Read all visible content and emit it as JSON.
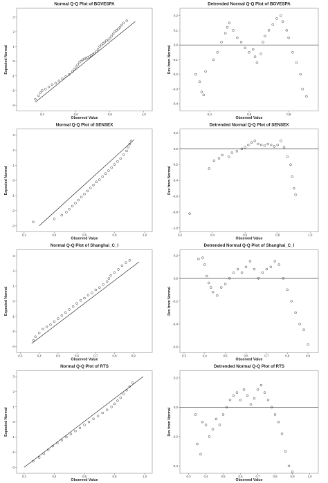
{
  "figure": {
    "panel_count": 8
  },
  "chart_data": [
    {
      "type": "scatter",
      "title": "Normal Q-Q Plot of BOVESPA",
      "xlabel": "Observed Value",
      "ylabel": "Expected Normal",
      "xlim": [
        0.25,
        1.05
      ],
      "ylim": [
        -3.4,
        3.6
      ],
      "xticks": [
        0.4,
        0.6,
        0.8,
        1.0
      ],
      "xtick_labels": [
        "0,4",
        "0,6",
        "0,8",
        "1,0"
      ],
      "yticks": [
        -3,
        -2,
        -1,
        0,
        1,
        2,
        3
      ],
      "yticks_labels": [
        "-3",
        "-2",
        "-1",
        "0",
        "1",
        "2",
        "3"
      ],
      "reference_line": {
        "x": [
          0.36,
          0.95
        ],
        "y": [
          -2.8,
          2.7
        ]
      },
      "points": [
        [
          0.36,
          -2.6
        ],
        [
          0.38,
          -2.35
        ],
        [
          0.39,
          -2.15
        ],
        [
          0.4,
          -2.0
        ],
        [
          0.42,
          -1.9
        ],
        [
          0.44,
          -1.75
        ],
        [
          0.46,
          -1.6
        ],
        [
          0.48,
          -1.5
        ],
        [
          0.5,
          -1.35
        ],
        [
          0.52,
          -1.2
        ],
        [
          0.54,
          -1.05
        ],
        [
          0.56,
          -0.9
        ],
        [
          0.58,
          -0.7
        ],
        [
          0.59,
          -0.55
        ],
        [
          0.6,
          -0.4
        ],
        [
          0.61,
          -0.25
        ],
        [
          0.62,
          -0.1
        ],
        [
          0.63,
          0.0
        ],
        [
          0.64,
          0.1
        ],
        [
          0.65,
          0.15
        ],
        [
          0.66,
          0.2
        ],
        [
          0.67,
          0.25
        ],
        [
          0.68,
          0.3
        ],
        [
          0.69,
          0.4
        ],
        [
          0.7,
          0.45
        ],
        [
          0.71,
          0.55
        ],
        [
          0.72,
          0.65
        ],
        [
          0.73,
          0.8
        ],
        [
          0.74,
          1.0
        ],
        [
          0.75,
          1.1
        ],
        [
          0.76,
          1.2
        ],
        [
          0.77,
          1.3
        ],
        [
          0.78,
          1.4
        ],
        [
          0.79,
          1.45
        ],
        [
          0.8,
          1.55
        ],
        [
          0.81,
          1.7
        ],
        [
          0.82,
          1.85
        ],
        [
          0.83,
          2.0
        ],
        [
          0.84,
          2.1
        ],
        [
          0.85,
          2.2
        ],
        [
          0.86,
          2.3
        ],
        [
          0.87,
          2.45
        ],
        [
          0.88,
          2.6
        ],
        [
          0.9,
          2.75
        ]
      ]
    },
    {
      "type": "scatter",
      "title": "Detrended Normal Q-Q Plot of BOVESPA",
      "xlabel": "Observed Value",
      "ylabel": "Dev from Normal",
      "xlim": [
        0.25,
        0.95
      ],
      "ylim": [
        -0.45,
        0.25
      ],
      "xticks": [
        0.4,
        0.6,
        0.8
      ],
      "xtick_labels": [
        "0,4",
        "0,6",
        "0,8"
      ],
      "yticks": [
        -0.4,
        -0.3,
        -0.2,
        -0.1,
        0.0,
        0.1,
        0.2
      ],
      "yticks_labels": [
        "-0,4",
        "-0,3",
        "-0,2",
        "-0,1",
        "0,0",
        "0,1",
        "0,2"
      ],
      "reference_line": {
        "y": 0.0
      },
      "points": [
        [
          0.33,
          -0.2
        ],
        [
          0.35,
          -0.25
        ],
        [
          0.36,
          -0.32
        ],
        [
          0.37,
          -0.34
        ],
        [
          0.38,
          -0.18
        ],
        [
          0.42,
          -0.1
        ],
        [
          0.44,
          -0.05
        ],
        [
          0.46,
          0.02
        ],
        [
          0.48,
          0.08
        ],
        [
          0.49,
          0.12
        ],
        [
          0.5,
          0.15
        ],
        [
          0.52,
          0.1
        ],
        [
          0.54,
          0.05
        ],
        [
          0.56,
          0.02
        ],
        [
          0.58,
          -0.02
        ],
        [
          0.6,
          -0.05
        ],
        [
          0.62,
          -0.03
        ],
        [
          0.63,
          -0.08
        ],
        [
          0.64,
          -0.12
        ],
        [
          0.66,
          -0.06
        ],
        [
          0.67,
          0.02
        ],
        [
          0.68,
          0.06
        ],
        [
          0.7,
          0.1
        ],
        [
          0.72,
          0.14
        ],
        [
          0.74,
          0.18
        ],
        [
          0.76,
          0.2
        ],
        [
          0.77,
          0.16
        ],
        [
          0.79,
          0.1
        ],
        [
          0.8,
          0.05
        ],
        [
          0.82,
          -0.05
        ],
        [
          0.84,
          -0.12
        ],
        [
          0.86,
          -0.2
        ],
        [
          0.87,
          -0.3
        ],
        [
          0.89,
          -0.35
        ]
      ]
    },
    {
      "type": "scatter",
      "title": "Normal Q-Q Plot of SENSEX",
      "xlabel": "Observed Value",
      "ylabel": "Expected Normal",
      "xlim": [
        0.15,
        1.05
      ],
      "ylim": [
        -3.4,
        3.4
      ],
      "xticks": [
        0.2,
        0.4,
        0.6,
        0.8,
        1.0
      ],
      "xtick_labels": [
        "0,2",
        "0,4",
        "0,6",
        "0,8",
        "1,0"
      ],
      "yticks": [
        -3,
        -2,
        -1,
        0,
        1,
        2,
        3
      ],
      "yticks_labels": [
        "-3",
        "-2",
        "-1",
        "0",
        "1",
        "2",
        "3"
      ],
      "reference_line": {
        "x": [
          0.3,
          0.93
        ],
        "y": [
          -3.0,
          2.7
        ]
      },
      "points": [
        [
          0.26,
          -2.75
        ],
        [
          0.4,
          -2.55
        ],
        [
          0.45,
          -2.3
        ],
        [
          0.48,
          -2.1
        ],
        [
          0.5,
          -1.9
        ],
        [
          0.52,
          -1.7
        ],
        [
          0.54,
          -1.5
        ],
        [
          0.56,
          -1.3
        ],
        [
          0.58,
          -1.1
        ],
        [
          0.6,
          -0.9
        ],
        [
          0.62,
          -0.7
        ],
        [
          0.64,
          -0.5
        ],
        [
          0.66,
          -0.3
        ],
        [
          0.68,
          -0.1
        ],
        [
          0.7,
          0.05
        ],
        [
          0.72,
          0.25
        ],
        [
          0.74,
          0.45
        ],
        [
          0.76,
          0.65
        ],
        [
          0.78,
          0.85
        ],
        [
          0.8,
          1.05
        ],
        [
          0.82,
          1.25
        ],
        [
          0.84,
          1.45
        ],
        [
          0.86,
          1.7
        ],
        [
          0.88,
          1.95
        ],
        [
          0.89,
          2.2
        ],
        [
          0.9,
          2.4
        ],
        [
          0.91,
          2.6
        ]
      ]
    },
    {
      "type": "scatter",
      "title": "Detrended Normal Q-Q Plot of SENSEX",
      "xlabel": "Observed Value",
      "ylabel": "Dev from Normal",
      "xlim": [
        0.2,
        1.05
      ],
      "ylim": [
        -1.05,
        0.25
      ],
      "xticks": [
        0.2,
        0.4,
        0.6,
        0.8,
        1.0
      ],
      "xtick_labels": [
        "0,2",
        "0,4",
        "0,6",
        "0,8",
        "1,0"
      ],
      "yticks": [
        -1.0,
        -0.8,
        -0.6,
        -0.4,
        -0.2,
        0.0,
        0.2
      ],
      "yticks_labels": [
        "-1,0",
        "-0,8",
        "-0,6",
        "-0,4",
        "-0,2",
        "0,0",
        "0,2"
      ],
      "reference_line": {
        "y": 0.0
      },
      "points": [
        [
          0.26,
          -0.82
        ],
        [
          0.38,
          -0.25
        ],
        [
          0.41,
          -0.15
        ],
        [
          0.44,
          -0.12
        ],
        [
          0.46,
          -0.08
        ],
        [
          0.5,
          -0.1
        ],
        [
          0.52,
          -0.05
        ],
        [
          0.55,
          -0.03
        ],
        [
          0.58,
          0.0
        ],
        [
          0.6,
          0.02
        ],
        [
          0.62,
          0.05
        ],
        [
          0.64,
          0.08
        ],
        [
          0.66,
          0.1
        ],
        [
          0.68,
          0.06
        ],
        [
          0.7,
          0.05
        ],
        [
          0.72,
          0.04
        ],
        [
          0.74,
          0.06
        ],
        [
          0.76,
          0.05
        ],
        [
          0.78,
          0.03
        ],
        [
          0.8,
          0.05
        ],
        [
          0.82,
          0.1
        ],
        [
          0.84,
          0.02
        ],
        [
          0.86,
          -0.1
        ],
        [
          0.88,
          -0.2
        ],
        [
          0.89,
          -0.35
        ],
        [
          0.9,
          -0.5
        ],
        [
          0.91,
          -0.58
        ]
      ]
    },
    {
      "type": "scatter",
      "title": "Normal Q-Q Plot of Shanghai_C_I",
      "xlabel": "Observed Value",
      "ylabel": "Expected Normal",
      "xlim": [
        0.28,
        1.0
      ],
      "ylim": [
        -3.4,
        3.4
      ],
      "xticks": [
        0.3,
        0.4,
        0.5,
        0.6,
        0.7,
        0.8,
        0.9
      ],
      "xtick_labels": [
        "0,3",
        "0,4",
        "0,5",
        "0,6",
        "0,7",
        "0,8",
        "0,9"
      ],
      "yticks": [
        -3,
        -2,
        -1,
        0,
        1,
        2,
        3
      ],
      "yticks_labels": [
        "-3",
        "-2",
        "-1",
        "0",
        "1",
        "2",
        "3"
      ],
      "reference_line": {
        "x": [
          0.36,
          0.93
        ],
        "y": [
          -2.8,
          2.6
        ]
      },
      "points": [
        [
          0.37,
          -2.6
        ],
        [
          0.38,
          -2.35
        ],
        [
          0.4,
          -2.1
        ],
        [
          0.42,
          -1.85
        ],
        [
          0.44,
          -1.7
        ],
        [
          0.46,
          -1.55
        ],
        [
          0.48,
          -1.35
        ],
        [
          0.5,
          -1.15
        ],
        [
          0.52,
          -0.95
        ],
        [
          0.54,
          -0.75
        ],
        [
          0.56,
          -0.55
        ],
        [
          0.58,
          -0.35
        ],
        [
          0.6,
          -0.15
        ],
        [
          0.62,
          0.05
        ],
        [
          0.64,
          0.2
        ],
        [
          0.66,
          0.4
        ],
        [
          0.68,
          0.55
        ],
        [
          0.7,
          0.75
        ],
        [
          0.72,
          0.9
        ],
        [
          0.74,
          1.1
        ],
        [
          0.76,
          1.3
        ],
        [
          0.77,
          1.5
        ],
        [
          0.78,
          1.7
        ],
        [
          0.8,
          1.9
        ],
        [
          0.82,
          2.1
        ],
        [
          0.84,
          2.35
        ],
        [
          0.86,
          2.55
        ],
        [
          0.88,
          2.7
        ]
      ]
    },
    {
      "type": "scatter",
      "title": "Detrended Normal Q-Q Plot of Shanghai_C_I",
      "xlabel": "Observed Value",
      "ylabel": "Dev from Normal",
      "xlim": [
        0.28,
        0.95
      ],
      "ylim": [
        -0.65,
        0.25
      ],
      "xticks": [
        0.3,
        0.4,
        0.5,
        0.6,
        0.7,
        0.8,
        0.9
      ],
      "xtick_labels": [
        "0,3",
        "0,4",
        "0,5",
        "0,6",
        "0,7",
        "0,8",
        "0,9"
      ],
      "yticks": [
        -0.6,
        -0.4,
        -0.2,
        0.0,
        0.2
      ],
      "yticks_labels": [
        "-0,6",
        "-0,4",
        "-0,2",
        "0,0",
        "0,2"
      ],
      "reference_line": {
        "y": 0.0
      },
      "points": [
        [
          0.37,
          0.17
        ],
        [
          0.39,
          0.18
        ],
        [
          0.4,
          0.12
        ],
        [
          0.41,
          0.02
        ],
        [
          0.42,
          -0.04
        ],
        [
          0.43,
          -0.08
        ],
        [
          0.44,
          -0.12
        ],
        [
          0.46,
          -0.15
        ],
        [
          0.48,
          -0.08
        ],
        [
          0.5,
          -0.05
        ],
        [
          0.52,
          0.0
        ],
        [
          0.54,
          0.05
        ],
        [
          0.56,
          0.08
        ],
        [
          0.58,
          0.05
        ],
        [
          0.6,
          0.1
        ],
        [
          0.62,
          0.15
        ],
        [
          0.64,
          0.08
        ],
        [
          0.66,
          0.0
        ],
        [
          0.68,
          0.05
        ],
        [
          0.7,
          0.08
        ],
        [
          0.72,
          0.1
        ],
        [
          0.74,
          0.15
        ],
        [
          0.76,
          0.12
        ],
        [
          0.78,
          0.0
        ],
        [
          0.8,
          -0.1
        ],
        [
          0.82,
          -0.2
        ],
        [
          0.84,
          -0.3
        ],
        [
          0.86,
          -0.4
        ],
        [
          0.88,
          -0.45
        ],
        [
          0.9,
          -0.58
        ]
      ]
    },
    {
      "type": "scatter",
      "title": "Normal Q-Q Plot of RTS",
      "xlabel": "Observed Value",
      "ylabel": "Expected Normal",
      "xlim": [
        0.15,
        1.05
      ],
      "ylim": [
        -3.4,
        3.4
      ],
      "xticks": [
        0.2,
        0.4,
        0.6,
        0.8,
        1.0
      ],
      "xtick_labels": [
        "0,2",
        "0,4",
        "0,6",
        "0,8",
        "1,0"
      ],
      "yticks": [
        -3,
        -2,
        -1,
        0,
        1,
        2,
        3
      ],
      "yticks_labels": [
        "-3",
        "-2",
        "-1",
        "0",
        "1",
        "2",
        "3"
      ],
      "reference_line": {
        "x": [
          0.2,
          0.99
        ],
        "y": [
          -3.0,
          3.0
        ]
      },
      "points": [
        [
          0.26,
          -2.6
        ],
        [
          0.3,
          -2.35
        ],
        [
          0.33,
          -2.1
        ],
        [
          0.36,
          -1.85
        ],
        [
          0.39,
          -1.6
        ],
        [
          0.42,
          -1.4
        ],
        [
          0.45,
          -1.2
        ],
        [
          0.48,
          -1.0
        ],
        [
          0.51,
          -0.8
        ],
        [
          0.54,
          -0.6
        ],
        [
          0.57,
          -0.4
        ],
        [
          0.6,
          -0.2
        ],
        [
          0.63,
          0.0
        ],
        [
          0.66,
          0.2
        ],
        [
          0.69,
          0.4
        ],
        [
          0.72,
          0.6
        ],
        [
          0.75,
          0.8
        ],
        [
          0.78,
          1.0
        ],
        [
          0.8,
          1.2
        ],
        [
          0.82,
          1.4
        ],
        [
          0.84,
          1.6
        ],
        [
          0.86,
          1.85
        ],
        [
          0.88,
          2.1
        ],
        [
          0.9,
          2.35
        ],
        [
          0.92,
          2.6
        ]
      ]
    },
    {
      "type": "scatter",
      "title": "Detrended Normal Q-Q Plot of RTS",
      "xlabel": "Observed Value",
      "ylabel": "Dev from Normal",
      "xlim": [
        0.25,
        1.05
      ],
      "ylim": [
        -0.45,
        0.25
      ],
      "xticks": [
        0.3,
        0.4,
        0.5,
        0.6,
        0.7,
        0.8,
        0.9,
        1.0
      ],
      "xtick_labels": [
        "0,3",
        "0,4",
        "0,5",
        "0,6",
        "0,7",
        "0,8",
        "0,9",
        "1,0"
      ],
      "yticks": [
        -0.4,
        -0.2,
        0.0,
        0.2
      ],
      "yticks_labels": [
        "-0,4",
        "-0,2",
        "0,0",
        "0,2"
      ],
      "reference_line": {
        "y": 0.0
      },
      "points": [
        [
          0.34,
          -0.05
        ],
        [
          0.35,
          -0.25
        ],
        [
          0.37,
          -0.32
        ],
        [
          0.38,
          -0.1
        ],
        [
          0.4,
          -0.12
        ],
        [
          0.42,
          -0.2
        ],
        [
          0.44,
          -0.15
        ],
        [
          0.46,
          -0.08
        ],
        [
          0.48,
          -0.12
        ],
        [
          0.5,
          -0.05
        ],
        [
          0.52,
          0.0
        ],
        [
          0.54,
          0.05
        ],
        [
          0.56,
          0.08
        ],
        [
          0.58,
          0.1
        ],
        [
          0.6,
          0.05
        ],
        [
          0.62,
          0.12
        ],
        [
          0.64,
          0.08
        ],
        [
          0.66,
          0.02
        ],
        [
          0.68,
          0.06
        ],
        [
          0.7,
          0.12
        ],
        [
          0.72,
          0.15
        ],
        [
          0.74,
          0.1
        ],
        [
          0.76,
          0.05
        ],
        [
          0.78,
          0.0
        ],
        [
          0.8,
          -0.05
        ],
        [
          0.82,
          -0.1
        ],
        [
          0.84,
          -0.18
        ],
        [
          0.86,
          -0.3
        ],
        [
          0.88,
          -0.4
        ],
        [
          0.9,
          -0.44
        ]
      ]
    }
  ]
}
